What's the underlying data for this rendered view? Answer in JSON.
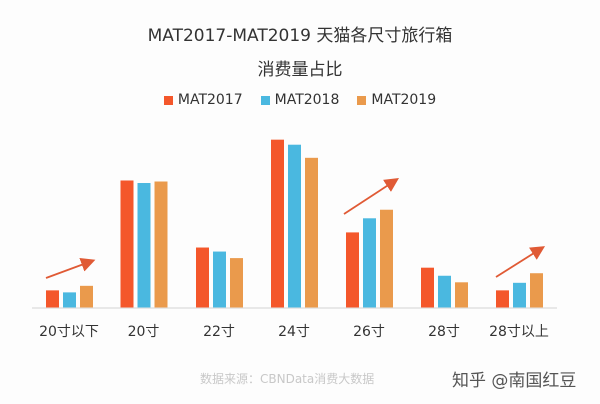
{
  "title_line1": "MAT2017-MAT2019 天猫各尺寸旅行箱",
  "title_line2": "消费量占比",
  "source": "数据来源：CBNData消费大数据",
  "watermark": "知乎 @南国红豆",
  "chart_data": {
    "type": "bar",
    "title": "MAT2017-MAT2019 天猫各尺寸旅行箱 消费量占比",
    "categories": [
      "20寸以下",
      "20寸",
      "22寸",
      "24寸",
      "26寸",
      "28寸",
      "28寸以上"
    ],
    "series": [
      {
        "name": "MAT2017",
        "color": "#f4572b",
        "values": [
          3.4,
          25.2,
          11.9,
          33.3,
          14.9,
          7.9,
          3.4
        ]
      },
      {
        "name": "MAT2018",
        "color": "#4ab8e0",
        "values": [
          3.0,
          24.7,
          11.1,
          32.3,
          17.7,
          6.3,
          4.9
        ]
      },
      {
        "name": "MAT2019",
        "color": "#ea9a4c",
        "values": [
          4.3,
          25.0,
          9.8,
          29.7,
          19.4,
          5.0,
          6.8
        ]
      }
    ],
    "ylim": [
      0,
      35
    ],
    "grid": false,
    "legend": "top-center",
    "annotations": [
      "upward trend arrow over 20寸以下",
      "upward trend arrow over 26寸",
      "upward trend arrow over 28寸以上"
    ]
  }
}
